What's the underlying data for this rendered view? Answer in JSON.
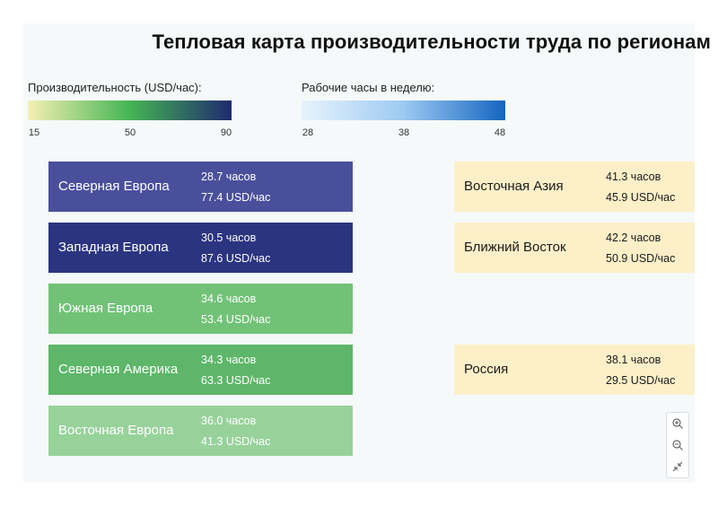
{
  "chart_data": {
    "type": "heatmap",
    "title": "Тепловая карта производительности труда по регионам",
    "legend_productivity": {
      "label": "Производительность (USD/час):",
      "ticks": [
        "15",
        "50",
        "90"
      ],
      "colors": [
        "#f5f0b4",
        "#45b554",
        "#1f2a6e"
      ]
    },
    "legend_hours": {
      "label": "Рабочие часы в неделю:",
      "ticks": [
        "28",
        "38",
        "48"
      ],
      "colors": [
        "#e8f3fd",
        "#9ccaf2",
        "#1565c0"
      ]
    },
    "regions": [
      {
        "name": "Северная Европа",
        "hours": "28.7 часов",
        "productivity": "77.4 USD/час",
        "color": "#4a4f9c",
        "text": "light"
      },
      {
        "name": "Западная Европа",
        "hours": "30.5 часов",
        "productivity": "87.6 USD/час",
        "color": "#2b347f",
        "text": "light"
      },
      {
        "name": "Южная Европа",
        "hours": "34.6 часов",
        "productivity": "53.4 USD/час",
        "color": "#71c277",
        "text": "light"
      },
      {
        "name": "Северная Америка",
        "hours": "34.3 часов",
        "productivity": "63.3 USD/час",
        "color": "#5db669",
        "text": "light"
      },
      {
        "name": "Восточная Европа",
        "hours": "36.0 часов",
        "productivity": "41.3 USD/час",
        "color": "#97d29a",
        "text": "light"
      },
      {
        "name": "Восточная Азия",
        "hours": "41.3 часов",
        "productivity": "45.9 USD/час",
        "color": "#fdefc8",
        "text": "dark"
      },
      {
        "name": "Ближний Восток",
        "hours": "42.2 часов",
        "productivity": "50.9 USD/час",
        "color": "#fdefc8",
        "text": "dark"
      },
      {
        "name": "Россия",
        "hours": "38.1 часов",
        "productivity": "29.5 USD/час",
        "color": "#fdefc8",
        "text": "dark"
      }
    ]
  },
  "controls": {
    "zoom_in_icon": "zoom-in-icon",
    "zoom_out_icon": "zoom-out-icon",
    "reset_icon": "collapse-arrows-icon"
  }
}
